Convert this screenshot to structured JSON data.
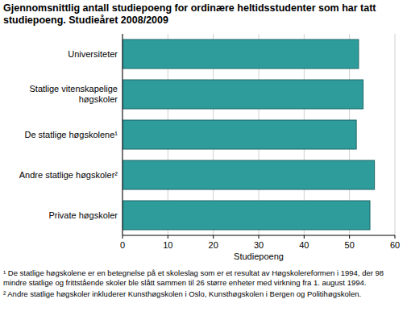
{
  "chart_data": {
    "type": "bar",
    "orientation": "horizontal",
    "title": "Gjennomsnittlig antall studiepoeng for ordinære heltidsstudenter som har tatt studiepoeng. Studieåret 2008/2009",
    "categories": [
      "Universiteter",
      "Statlige vitenskapelige høgskoler",
      "De statlige høgskolene¹",
      "Andre statlige høgskoler²",
      "Private høgskoler"
    ],
    "values": [
      52,
      53,
      51.5,
      55.5,
      54.5
    ],
    "color": "#2f9c9c",
    "x_label": "Studiepoeng",
    "xlim": [
      0,
      60
    ],
    "xticks": [
      0,
      10,
      20,
      30,
      40,
      50,
      60
    ],
    "grid": true,
    "notes": [
      "¹ De statlige høgskolene er en betegnelse på et skoleslag som er et resultat av Høgskolereformen i 1994, der 98 mindre statlige og frittstående skoler ble slått sammen til 26 større enheter med virkning fra 1. august 1994.",
      "² Andre statlige høgskoler inkluderer Kunsthøgskolen i Oslo, Kunsthøgskolen i Bergen og Politihøgskolen."
    ]
  }
}
